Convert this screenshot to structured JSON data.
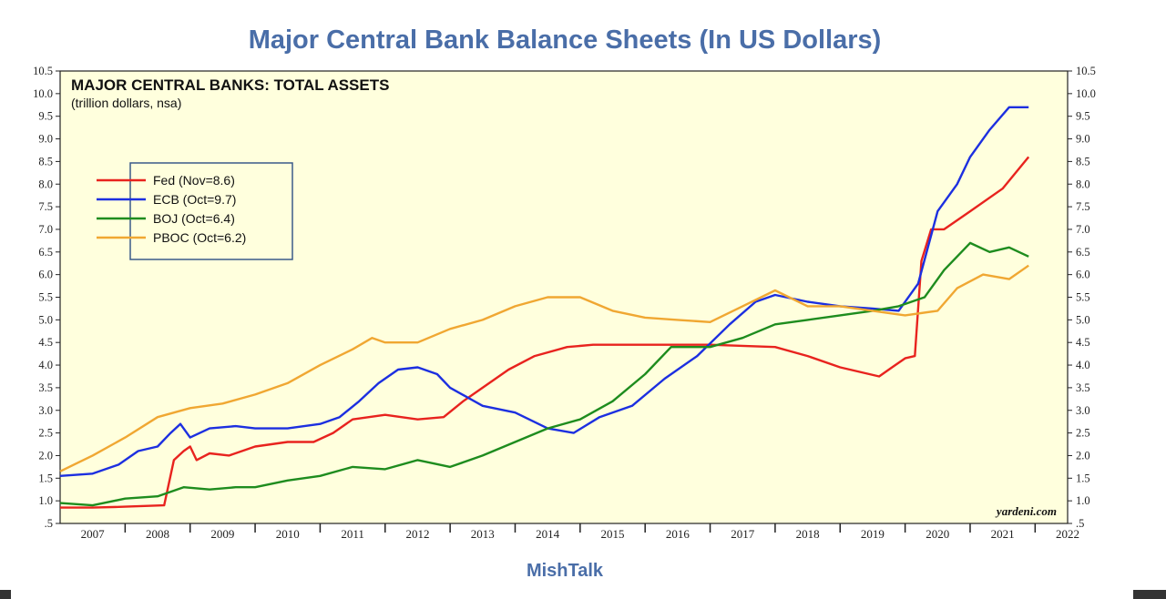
{
  "title": "Major Central Bank Balance Sheets (In US Dollars)",
  "credit": "MishTalk",
  "chart_data": {
    "type": "line",
    "title": "MAJOR CENTRAL BANKS: TOTAL ASSETS",
    "subtitle": "(trillion dollars, nsa)",
    "source": "yardeni.com",
    "ylim": [
      0.5,
      10.5
    ],
    "y_ticks": [
      ".5",
      "1.0",
      "1.5",
      "2.0",
      "2.5",
      "3.0",
      "3.5",
      "4.0",
      "4.5",
      "5.0",
      "5.5",
      "6.0",
      "6.5",
      "7.0",
      "7.5",
      "8.0",
      "8.5",
      "9.0",
      "9.5",
      "10.0",
      "10.5"
    ],
    "xlim": [
      2007.0,
      2022.5
    ],
    "x_tick_labels": [
      "2007",
      "2008",
      "2009",
      "2010",
      "2011",
      "2012",
      "2013",
      "2014",
      "2015",
      "2016",
      "2017",
      "2018",
      "2019",
      "2020",
      "2021",
      "2022"
    ],
    "legend_position": "upper-left",
    "plot_background": "#ffffdd",
    "series": [
      {
        "name": "Fed (Nov=8.6)",
        "color": "#e8231e",
        "points": [
          [
            2007.0,
            0.85
          ],
          [
            2007.5,
            0.85
          ],
          [
            2008.0,
            0.87
          ],
          [
            2008.6,
            0.9
          ],
          [
            2008.75,
            1.9
          ],
          [
            2008.9,
            2.1
          ],
          [
            2009.0,
            2.2
          ],
          [
            2009.1,
            1.9
          ],
          [
            2009.3,
            2.05
          ],
          [
            2009.6,
            2.0
          ],
          [
            2010.0,
            2.2
          ],
          [
            2010.5,
            2.3
          ],
          [
            2010.9,
            2.3
          ],
          [
            2011.2,
            2.5
          ],
          [
            2011.5,
            2.8
          ],
          [
            2012.0,
            2.9
          ],
          [
            2012.5,
            2.8
          ],
          [
            2012.9,
            2.85
          ],
          [
            2013.2,
            3.2
          ],
          [
            2013.5,
            3.5
          ],
          [
            2013.9,
            3.9
          ],
          [
            2014.3,
            4.2
          ],
          [
            2014.8,
            4.4
          ],
          [
            2015.2,
            4.45
          ],
          [
            2016.0,
            4.45
          ],
          [
            2017.0,
            4.45
          ],
          [
            2018.0,
            4.4
          ],
          [
            2018.5,
            4.2
          ],
          [
            2019.0,
            3.95
          ],
          [
            2019.6,
            3.75
          ],
          [
            2019.8,
            3.95
          ],
          [
            2020.0,
            4.15
          ],
          [
            2020.15,
            4.2
          ],
          [
            2020.25,
            6.3
          ],
          [
            2020.4,
            7.0
          ],
          [
            2020.6,
            7.0
          ],
          [
            2021.0,
            7.4
          ],
          [
            2021.5,
            7.9
          ],
          [
            2021.9,
            8.6
          ]
        ]
      },
      {
        "name": "ECB (Oct=9.7)",
        "color": "#1c2fe0",
        "points": [
          [
            2007.0,
            1.55
          ],
          [
            2007.5,
            1.6
          ],
          [
            2007.9,
            1.8
          ],
          [
            2008.2,
            2.1
          ],
          [
            2008.5,
            2.2
          ],
          [
            2008.7,
            2.5
          ],
          [
            2008.85,
            2.7
          ],
          [
            2009.0,
            2.4
          ],
          [
            2009.3,
            2.6
          ],
          [
            2009.7,
            2.65
          ],
          [
            2010.0,
            2.6
          ],
          [
            2010.5,
            2.6
          ],
          [
            2011.0,
            2.7
          ],
          [
            2011.3,
            2.85
          ],
          [
            2011.6,
            3.2
          ],
          [
            2011.9,
            3.6
          ],
          [
            2012.2,
            3.9
          ],
          [
            2012.5,
            3.95
          ],
          [
            2012.8,
            3.8
          ],
          [
            2013.0,
            3.5
          ],
          [
            2013.5,
            3.1
          ],
          [
            2014.0,
            2.95
          ],
          [
            2014.5,
            2.6
          ],
          [
            2014.9,
            2.5
          ],
          [
            2015.3,
            2.85
          ],
          [
            2015.8,
            3.1
          ],
          [
            2016.3,
            3.7
          ],
          [
            2016.8,
            4.2
          ],
          [
            2017.3,
            4.9
          ],
          [
            2017.7,
            5.4
          ],
          [
            2018.0,
            5.55
          ],
          [
            2018.5,
            5.4
          ],
          [
            2019.0,
            5.3
          ],
          [
            2019.5,
            5.25
          ],
          [
            2019.9,
            5.2
          ],
          [
            2020.2,
            5.8
          ],
          [
            2020.5,
            7.4
          ],
          [
            2020.8,
            8.0
          ],
          [
            2021.0,
            8.6
          ],
          [
            2021.3,
            9.2
          ],
          [
            2021.6,
            9.7
          ],
          [
            2021.9,
            9.7
          ]
        ]
      },
      {
        "name": "BOJ (Oct=6.4)",
        "color": "#1e8c1e",
        "points": [
          [
            2007.0,
            0.95
          ],
          [
            2007.5,
            0.9
          ],
          [
            2008.0,
            1.05
          ],
          [
            2008.5,
            1.1
          ],
          [
            2008.9,
            1.3
          ],
          [
            2009.3,
            1.25
          ],
          [
            2009.7,
            1.3
          ],
          [
            2010.0,
            1.3
          ],
          [
            2010.5,
            1.45
          ],
          [
            2011.0,
            1.55
          ],
          [
            2011.5,
            1.75
          ],
          [
            2012.0,
            1.7
          ],
          [
            2012.5,
            1.9
          ],
          [
            2013.0,
            1.75
          ],
          [
            2013.5,
            2.0
          ],
          [
            2014.0,
            2.3
          ],
          [
            2014.5,
            2.6
          ],
          [
            2015.0,
            2.8
          ],
          [
            2015.5,
            3.2
          ],
          [
            2016.0,
            3.8
          ],
          [
            2016.4,
            4.4
          ],
          [
            2016.7,
            4.4
          ],
          [
            2017.0,
            4.4
          ],
          [
            2017.5,
            4.6
          ],
          [
            2018.0,
            4.9
          ],
          [
            2018.5,
            5.0
          ],
          [
            2019.0,
            5.1
          ],
          [
            2019.5,
            5.2
          ],
          [
            2019.9,
            5.3
          ],
          [
            2020.3,
            5.5
          ],
          [
            2020.6,
            6.1
          ],
          [
            2021.0,
            6.7
          ],
          [
            2021.3,
            6.5
          ],
          [
            2021.6,
            6.6
          ],
          [
            2021.9,
            6.4
          ]
        ]
      },
      {
        "name": "PBOC (Oct=6.2)",
        "color": "#f0a732",
        "points": [
          [
            2007.0,
            1.65
          ],
          [
            2007.5,
            2.0
          ],
          [
            2008.0,
            2.4
          ],
          [
            2008.5,
            2.85
          ],
          [
            2009.0,
            3.05
          ],
          [
            2009.5,
            3.15
          ],
          [
            2010.0,
            3.35
          ],
          [
            2010.5,
            3.6
          ],
          [
            2011.0,
            4.0
          ],
          [
            2011.5,
            4.35
          ],
          [
            2011.8,
            4.6
          ],
          [
            2012.0,
            4.5
          ],
          [
            2012.5,
            4.5
          ],
          [
            2013.0,
            4.8
          ],
          [
            2013.5,
            5.0
          ],
          [
            2014.0,
            5.3
          ],
          [
            2014.5,
            5.5
          ],
          [
            2015.0,
            5.5
          ],
          [
            2015.5,
            5.2
          ],
          [
            2016.0,
            5.05
          ],
          [
            2016.5,
            5.0
          ],
          [
            2017.0,
            4.95
          ],
          [
            2017.5,
            5.3
          ],
          [
            2018.0,
            5.65
          ],
          [
            2018.5,
            5.3
          ],
          [
            2019.0,
            5.3
          ],
          [
            2019.5,
            5.2
          ],
          [
            2020.0,
            5.1
          ],
          [
            2020.5,
            5.2
          ],
          [
            2020.8,
            5.7
          ],
          [
            2021.2,
            6.0
          ],
          [
            2021.6,
            5.9
          ],
          [
            2021.9,
            6.2
          ]
        ]
      }
    ]
  }
}
